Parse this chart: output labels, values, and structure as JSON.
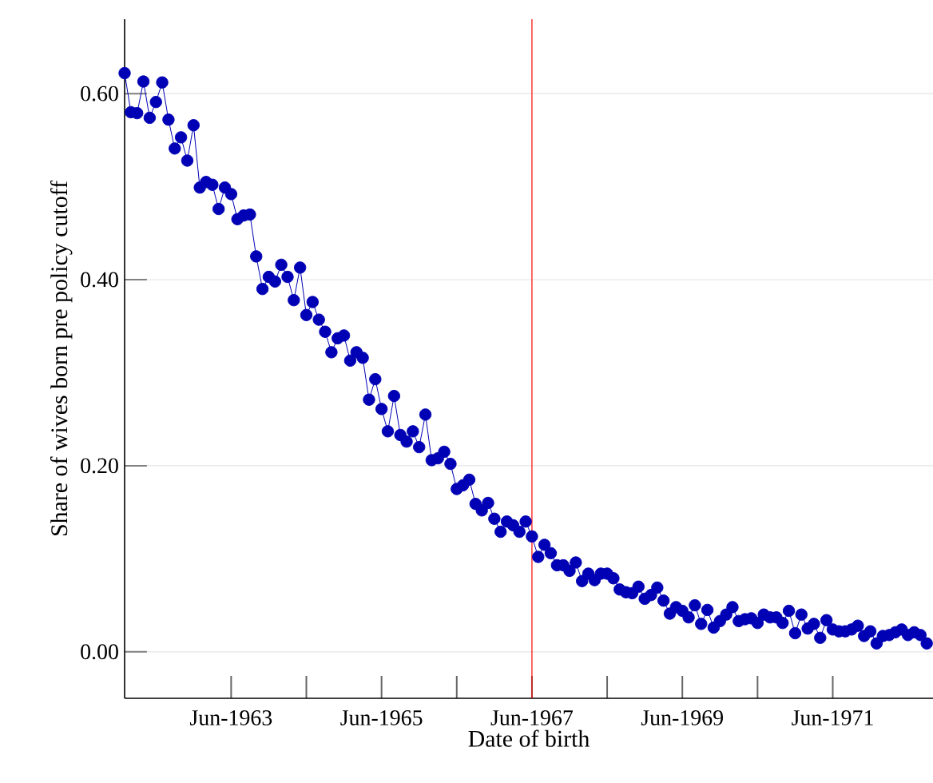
{
  "chart_data": {
    "type": "line",
    "xlabel": "Date of birth",
    "ylabel": "Share of wives born pre policy cutoff",
    "x": [
      "1962-01",
      "1962-02",
      "1962-03",
      "1962-04",
      "1962-05",
      "1962-06",
      "1962-07",
      "1962-08",
      "1962-09",
      "1962-10",
      "1962-11",
      "1962-12",
      "1963-01",
      "1963-02",
      "1963-03",
      "1963-04",
      "1963-05",
      "1963-06",
      "1963-07",
      "1963-08",
      "1963-09",
      "1963-10",
      "1963-11",
      "1963-12",
      "1964-01",
      "1964-02",
      "1964-03",
      "1964-04",
      "1964-05",
      "1964-06",
      "1964-07",
      "1964-08",
      "1964-09",
      "1964-10",
      "1964-11",
      "1964-12",
      "1965-01",
      "1965-02",
      "1965-03",
      "1965-04",
      "1965-05",
      "1965-06",
      "1965-07",
      "1965-08",
      "1965-09",
      "1965-10",
      "1965-11",
      "1965-12",
      "1966-01",
      "1966-02",
      "1966-03",
      "1966-04",
      "1966-05",
      "1966-06",
      "1966-07",
      "1966-08",
      "1966-09",
      "1966-10",
      "1966-11",
      "1966-12",
      "1967-01",
      "1967-02",
      "1967-03",
      "1967-04",
      "1967-05",
      "1967-06",
      "1967-07",
      "1967-08",
      "1967-09",
      "1967-10",
      "1967-11",
      "1967-12",
      "1968-01",
      "1968-02",
      "1968-03",
      "1968-04",
      "1968-05",
      "1968-06",
      "1968-07",
      "1968-08",
      "1968-09",
      "1968-10",
      "1968-11",
      "1968-12",
      "1969-01",
      "1969-02",
      "1969-03",
      "1969-04",
      "1969-05",
      "1969-06",
      "1969-07",
      "1969-08",
      "1969-09",
      "1969-10",
      "1969-11",
      "1969-12",
      "1970-01",
      "1970-02",
      "1970-03",
      "1970-04",
      "1970-05",
      "1970-06",
      "1970-07",
      "1970-08",
      "1970-09",
      "1970-10",
      "1970-11",
      "1970-12",
      "1971-01",
      "1971-02",
      "1971-03",
      "1971-04",
      "1971-05",
      "1971-06",
      "1971-07",
      "1971-08",
      "1971-09",
      "1971-10",
      "1971-11",
      "1971-12",
      "1972-01",
      "1972-02",
      "1972-03",
      "1972-04",
      "1972-05",
      "1972-06",
      "1972-07",
      "1972-08",
      "1972-09"
    ],
    "series": [
      {
        "color": "#0000b4",
        "values": [
          0.622,
          0.58,
          0.579,
          0.613,
          0.574,
          0.591,
          0.612,
          0.572,
          0.541,
          0.553,
          0.528,
          0.566,
          0.499,
          0.505,
          0.502,
          0.476,
          0.499,
          0.492,
          0.465,
          0.469,
          0.47,
          0.425,
          0.39,
          0.403,
          0.398,
          0.416,
          0.403,
          0.378,
          0.413,
          0.362,
          0.376,
          0.357,
          0.344,
          0.322,
          0.337,
          0.34,
          0.313,
          0.322,
          0.316,
          0.271,
          0.293,
          0.261,
          0.237,
          0.275,
          0.233,
          0.226,
          0.237,
          0.22,
          0.255,
          0.206,
          0.208,
          0.215,
          0.202,
          0.175,
          0.179,
          0.185,
          0.159,
          0.152,
          0.16,
          0.143,
          0.129,
          0.14,
          0.136,
          0.129,
          0.14,
          0.124,
          0.102,
          0.115,
          0.106,
          0.093,
          0.093,
          0.087,
          0.096,
          0.076,
          0.084,
          0.077,
          0.084,
          0.084,
          0.079,
          0.067,
          0.064,
          0.063,
          0.07,
          0.057,
          0.061,
          0.069,
          0.055,
          0.041,
          0.048,
          0.044,
          0.037,
          0.05,
          0.03,
          0.045,
          0.026,
          0.033,
          0.04,
          0.048,
          0.033,
          0.035,
          0.036,
          0.031,
          0.04,
          0.037,
          0.037,
          0.031,
          0.044,
          0.02,
          0.04,
          0.025,
          0.03,
          0.015,
          0.034,
          0.024,
          0.022,
          0.022,
          0.024,
          0.028,
          0.017,
          0.022,
          0.009,
          0.017,
          0.018,
          0.021,
          0.024,
          0.018,
          0.021,
          0.018,
          0.009
        ]
      }
    ],
    "xlim": [
      "1962-01",
      "1972-10"
    ],
    "xticks": [
      {
        "value": "1963-06",
        "label": "Jun-1963"
      },
      {
        "value": "1964-06",
        "label": null
      },
      {
        "value": "1965-06",
        "label": "Jun-1965"
      },
      {
        "value": "1966-06",
        "label": null
      },
      {
        "value": "1967-06",
        "label": "Jun-1967"
      },
      {
        "value": "1968-06",
        "label": null
      },
      {
        "value": "1969-06",
        "label": "Jun-1969"
      },
      {
        "value": "1970-06",
        "label": null
      },
      {
        "value": "1971-06",
        "label": "Jun-1971"
      }
    ],
    "ylim": [
      -0.05,
      0.68
    ],
    "yticks": [
      {
        "value": 0,
        "label": "0.00"
      },
      {
        "value": 0.2,
        "label": "0.20"
      },
      {
        "value": 0.4,
        "label": "0.40"
      },
      {
        "value": 0.6,
        "label": "0.60"
      }
    ],
    "ref_lines": [
      {
        "axis": "x",
        "value": "1967-06",
        "color": "#ff0000"
      }
    ],
    "grid": "y",
    "marker": "circle",
    "line_style": "solid"
  }
}
